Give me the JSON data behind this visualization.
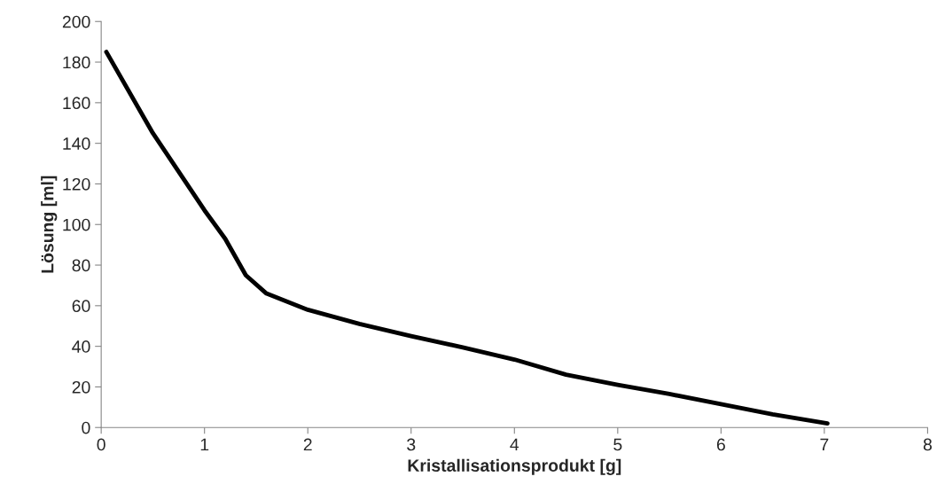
{
  "chart_data": {
    "type": "line",
    "xlabel": "Kristallisationsprodukt [g]",
    "ylabel": "Lösung [ml]",
    "series": [
      {
        "color": "#000000",
        "x": [
          0.05,
          0.5,
          1,
          1.2,
          1.4,
          1.6,
          2,
          2.5,
          3,
          3.5,
          4,
          4.5,
          5,
          5.5,
          6,
          6.5,
          7.03
        ],
        "values": [
          185,
          145,
          107,
          93,
          75,
          66,
          58,
          51,
          45,
          39.5,
          33.5,
          26,
          21,
          16.5,
          11.5,
          6.5,
          2
        ]
      }
    ],
    "xlim": [
      0,
      8
    ],
    "xticks": [
      0,
      1,
      2,
      3,
      4,
      5,
      6,
      7,
      8
    ],
    "ylim": [
      0,
      200
    ],
    "yticks": [
      0,
      20,
      40,
      60,
      80,
      100,
      120,
      140,
      160,
      180,
      200
    ],
    "marker": "none",
    "line_style": "solid"
  }
}
